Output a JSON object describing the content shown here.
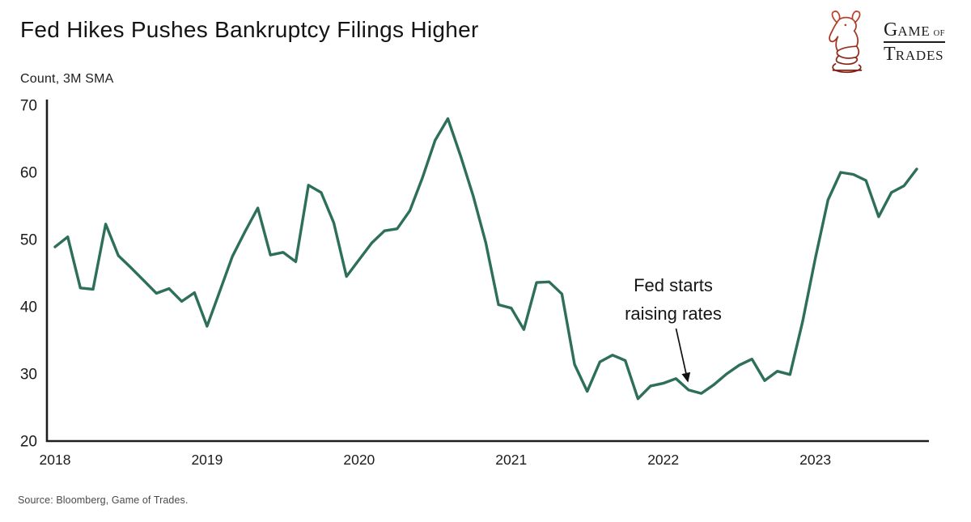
{
  "header": {
    "title": "Fed Hikes Pushes Bankruptcy Filings Higher",
    "unit_label": "Count, 3M SMA"
  },
  "logo": {
    "icon": "bull-chess-knight-icon",
    "icon_color_top": "#c2452f",
    "icon_color_bottom": "#7e2115",
    "word1_initial": "G",
    "word1_rest": "AME",
    "word1_suffix": "OF",
    "word2_initial": "T",
    "word2_rest": "RADES",
    "text_color": "#1c1c1c"
  },
  "chart_data": {
    "type": "line",
    "title": "Fed Hikes Pushes Bankruptcy Filings Higher",
    "ylabel": "Count, 3M SMA",
    "x_start": "2018-01",
    "x_end": "2023-09",
    "x_frequency": "monthly",
    "ylim": [
      20,
      70
    ],
    "y_ticks": [
      20,
      30,
      40,
      50,
      60,
      70
    ],
    "x_tick_labels": [
      "2018",
      "2019",
      "2020",
      "2021",
      "2022",
      "2023"
    ],
    "grid": false,
    "legend": "none",
    "line_color": "#2d6f58",
    "axis_color": "#1e1e1e",
    "series": [
      {
        "name": "Bankruptcy filings, count, 3M SMA",
        "values": [
          48.9,
          50.4,
          42.8,
          42.6,
          52.3,
          47.6,
          45.8,
          43.9,
          42.0,
          42.7,
          40.8,
          42.1,
          37.1,
          42.3,
          47.5,
          51.2,
          54.7,
          47.7,
          48.1,
          46.7,
          58.1,
          57.0,
          52.5,
          44.5,
          47.0,
          49.5,
          51.3,
          51.6,
          54.3,
          59.2,
          64.8,
          68.0,
          62.5,
          56.5,
          49.5,
          40.3,
          39.8,
          36.6,
          43.6,
          43.7,
          41.9,
          31.4,
          27.4,
          31.8,
          32.8,
          32.0,
          26.3,
          28.2,
          28.6,
          29.3,
          27.6,
          27.1,
          28.4,
          30.0,
          31.3,
          32.2,
          29.0,
          30.4,
          29.9,
          37.8,
          47.2,
          55.9,
          60.0,
          59.7,
          58.8,
          53.4,
          57.0,
          58.0,
          60.5
        ]
      }
    ],
    "annotation": {
      "text_line1": "Fed starts",
      "text_line2": "raising rates",
      "points_to": "2022-03",
      "month_index": 50
    }
  },
  "footer": {
    "source": "Source: Bloomberg, Game of Trades."
  }
}
